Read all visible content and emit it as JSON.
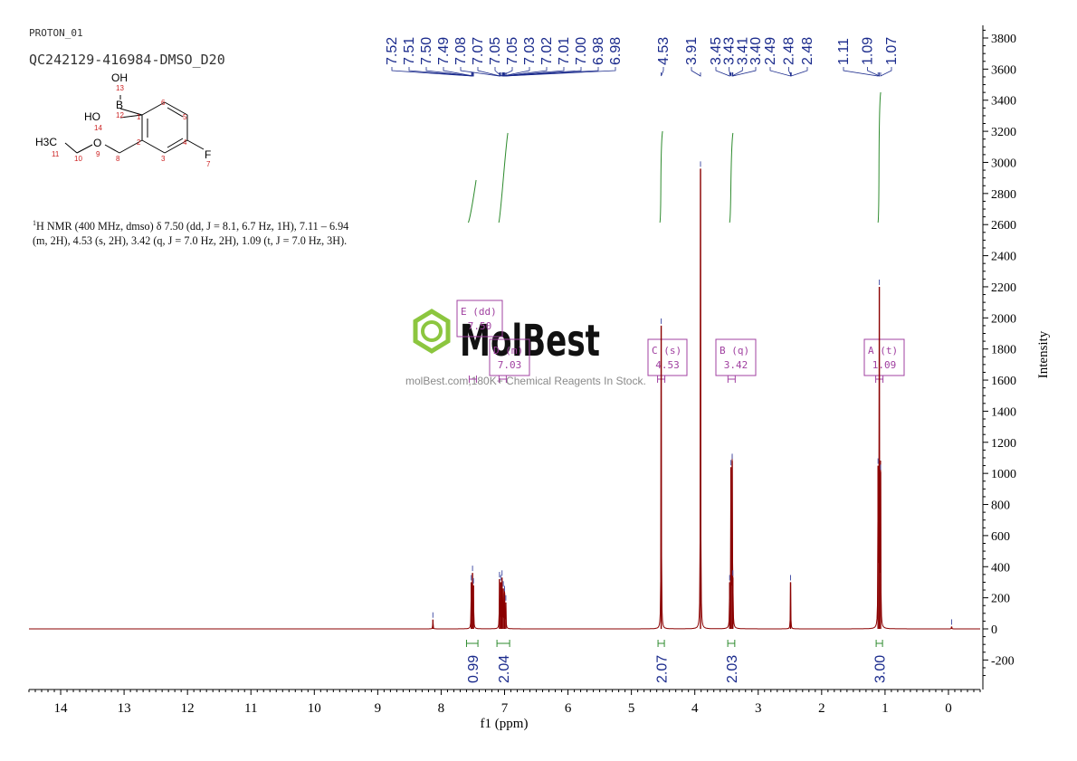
{
  "header": {
    "experiment": "PROTON_01",
    "sample": "QC242129-416984-DMSO_D20"
  },
  "nmr_summary": {
    "nucleus_sup": "1",
    "text": "H NMR (400 MHz, dmso) δ 7.50 (dd, J = 8.1, 6.7 Hz, 1H), 7.11 – 6.94 (m, 2H), 4.53 (s, 2H), 3.42 (q, J = 7.0 Hz, 2H), 1.09 (t, J = 7.0 Hz, 3H)."
  },
  "molecule": {
    "atoms": [
      "OH",
      "B",
      "HO",
      "H3C",
      "O",
      "F"
    ],
    "numbers": [
      "13",
      "12",
      "14",
      "1",
      "2",
      "3",
      "4",
      "5",
      "6",
      "7",
      "8",
      "9",
      "10",
      "11"
    ]
  },
  "watermark": {
    "brand": "MolBest",
    "tagline": "molBest.com,180K+ Chemical Reagents In Stock."
  },
  "colors": {
    "spectrum": "#8b0000",
    "peak_labels": "#1a2a8c",
    "integral": "#2e8b2e",
    "annotation": "#a040a0"
  },
  "chart_data": {
    "type": "line",
    "xlabel": "f1 (ppm)",
    "ylabel": "Intensity",
    "xlim": [
      14.5,
      -0.5
    ],
    "ylim": [
      -350,
      3900
    ],
    "x_ticks": [
      14,
      13,
      12,
      11,
      10,
      9,
      8,
      7,
      6,
      5,
      4,
      3,
      2,
      1,
      0
    ],
    "y_ticks": [
      -200,
      0,
      200,
      400,
      600,
      800,
      1000,
      1200,
      1400,
      1600,
      1800,
      2000,
      2200,
      2400,
      2600,
      2800,
      3000,
      3200,
      3400,
      3600,
      3800
    ],
    "peaks": [
      {
        "ppm": 8.13,
        "height": 60
      },
      {
        "ppm": 7.525,
        "height": 300
      },
      {
        "ppm": 7.505,
        "height": 360
      },
      {
        "ppm": 7.49,
        "height": 280
      },
      {
        "ppm": 7.08,
        "height": 320
      },
      {
        "ppm": 7.06,
        "height": 300
      },
      {
        "ppm": 7.04,
        "height": 330
      },
      {
        "ppm": 7.02,
        "height": 260
      },
      {
        "ppm": 7.0,
        "height": 230
      },
      {
        "ppm": 6.98,
        "height": 170
      },
      {
        "ppm": 4.53,
        "height": 1950
      },
      {
        "ppm": 3.91,
        "height": 2960
      },
      {
        "ppm": 3.45,
        "height": 300
      },
      {
        "ppm": 3.43,
        "height": 1040
      },
      {
        "ppm": 3.41,
        "height": 1080
      },
      {
        "ppm": 3.4,
        "height": 330
      },
      {
        "ppm": 2.49,
        "height": 300
      },
      {
        "ppm": 1.11,
        "height": 1050
      },
      {
        "ppm": 1.09,
        "height": 2200
      },
      {
        "ppm": 1.07,
        "height": 1010
      },
      {
        "ppm": -0.05,
        "height": 15
      }
    ],
    "peak_labels": [
      {
        "text": "7.52",
        "ppm": 7.52
      },
      {
        "text": "7.51",
        "ppm": 7.51
      },
      {
        "text": "7.50",
        "ppm": 7.5
      },
      {
        "text": "7.49",
        "ppm": 7.49
      },
      {
        "text": "7.08",
        "ppm": 7.08
      },
      {
        "text": "7.07",
        "ppm": 7.07
      },
      {
        "text": "7.05",
        "ppm": 7.05
      },
      {
        "text": "7.05",
        "ppm": 7.05
      },
      {
        "text": "7.03",
        "ppm": 7.03
      },
      {
        "text": "7.02",
        "ppm": 7.02
      },
      {
        "text": "7.01",
        "ppm": 7.01
      },
      {
        "text": "7.00",
        "ppm": 7.0
      },
      {
        "text": "6.98",
        "ppm": 6.98
      },
      {
        "text": "6.98",
        "ppm": 6.98
      },
      {
        "text": "4.53",
        "ppm": 4.53
      },
      {
        "text": "3.91",
        "ppm": 3.91
      },
      {
        "text": "3.45",
        "ppm": 3.45
      },
      {
        "text": "3.43",
        "ppm": 3.43
      },
      {
        "text": "3.41",
        "ppm": 3.41
      },
      {
        "text": "3.40",
        "ppm": 3.4
      },
      {
        "text": "2.49",
        "ppm": 2.49
      },
      {
        "text": "2.48",
        "ppm": 2.48
      },
      {
        "text": "2.48",
        "ppm": 2.48
      },
      {
        "text": "1.11",
        "ppm": 1.11
      },
      {
        "text": "1.09",
        "ppm": 1.09
      },
      {
        "text": "1.07",
        "ppm": 1.07
      }
    ],
    "integrals": [
      {
        "value": "0.99",
        "from": 7.6,
        "to": 7.42
      },
      {
        "value": "2.04",
        "from": 7.12,
        "to": 6.92
      },
      {
        "value": "2.07",
        "from": 4.58,
        "to": 4.48
      },
      {
        "value": "2.03",
        "from": 3.48,
        "to": 3.37
      },
      {
        "value": "3.00",
        "from": 1.14,
        "to": 1.04
      }
    ],
    "multiplets": [
      {
        "label": "E (dd)",
        "shift": "7.50",
        "ppm": 7.5
      },
      {
        "label": "D (m)",
        "shift": "7.03",
        "ppm": 7.03
      },
      {
        "label": "C (s)",
        "shift": "4.53",
        "ppm": 4.53
      },
      {
        "label": "B (q)",
        "shift": "3.42",
        "ppm": 3.42
      },
      {
        "label": "A (t)",
        "shift": "1.09",
        "ppm": 1.09
      }
    ]
  }
}
